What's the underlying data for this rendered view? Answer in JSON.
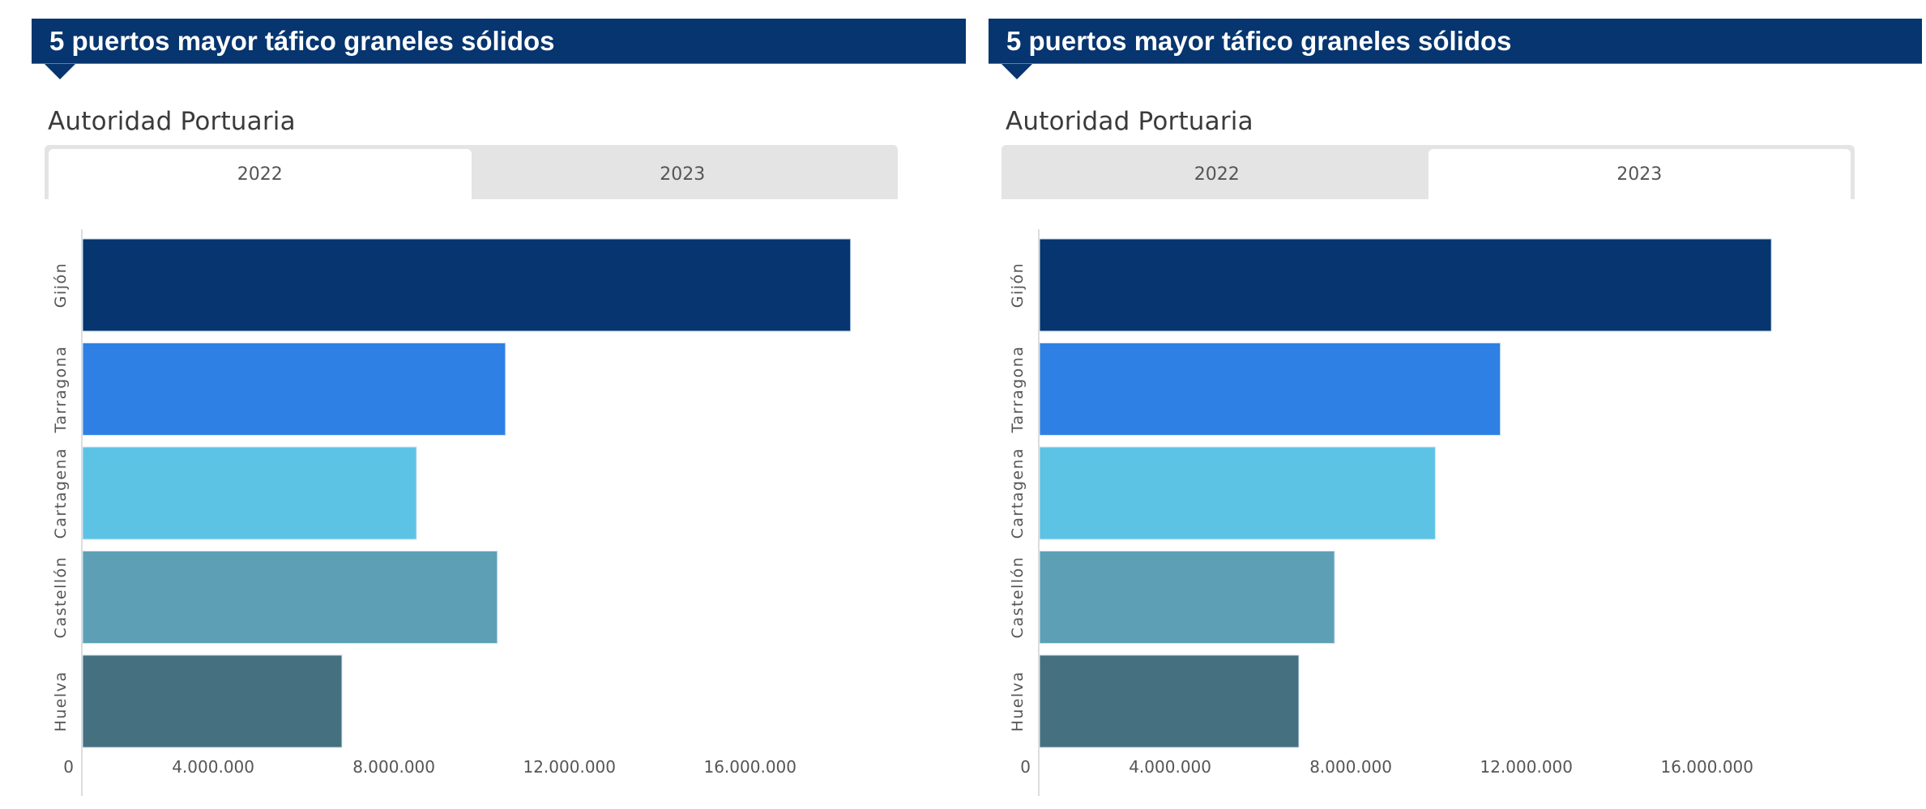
{
  "panels": [
    {
      "header_title": "5 puertos mayor táfico graneles sólidos",
      "subtitle": "Autoridad Portuaria",
      "tabs": [
        {
          "label": "2022",
          "active": true
        },
        {
          "label": "2023",
          "active": false
        }
      ],
      "selected_year": "2022"
    },
    {
      "header_title": "5 puertos mayor táfico graneles sólidos",
      "subtitle": "Autoridad Portuaria",
      "tabs": [
        {
          "label": "2022",
          "active": false
        },
        {
          "label": "2023",
          "active": true
        }
      ],
      "selected_year": "2023"
    }
  ],
  "chart_data": [
    {
      "type": "bar",
      "orientation": "horizontal",
      "title": "5 puertos mayor táfico graneles sólidos — 2022",
      "categories": [
        "Gijón",
        "Tarragona",
        "Cartagena",
        "Castellón",
        "Huelva"
      ],
      "values": [
        17000000,
        9360000,
        7390000,
        9180000,
        5740000
      ],
      "colors": [
        "#06356f",
        "#2f80e4",
        "#5cc3e4",
        "#5da0b6",
        "#45707f"
      ],
      "xlabel": "",
      "ylabel": "",
      "xlim": [
        0,
        20000000
      ],
      "xticks": [
        0,
        4000000,
        8000000,
        12000000,
        16000000
      ],
      "xtick_labels": [
        "0",
        "4.000.000",
        "8.000.000",
        "12.000.000",
        "16.000.000"
      ],
      "grid": false,
      "legend": "none"
    },
    {
      "type": "bar",
      "orientation": "horizontal",
      "title": "5 puertos mayor táfico graneles sólidos — 2023",
      "categories": [
        "Gijón",
        "Tarragona",
        "Cartagena",
        "Castellón",
        "Huelva"
      ],
      "values": [
        16200000,
        10200000,
        8760000,
        6530000,
        5740000
      ],
      "colors": [
        "#06356f",
        "#2f80e4",
        "#5cc3e4",
        "#5da0b6",
        "#45707f"
      ],
      "xlabel": "",
      "ylabel": "",
      "xlim": [
        0,
        20000000
      ],
      "xticks": [
        0,
        4000000,
        8000000,
        12000000,
        16000000
      ],
      "xtick_labels": [
        "0",
        "4.000.000",
        "8.000.000",
        "12.000.000",
        "16.000.000"
      ],
      "grid": false,
      "legend": "none"
    }
  ]
}
